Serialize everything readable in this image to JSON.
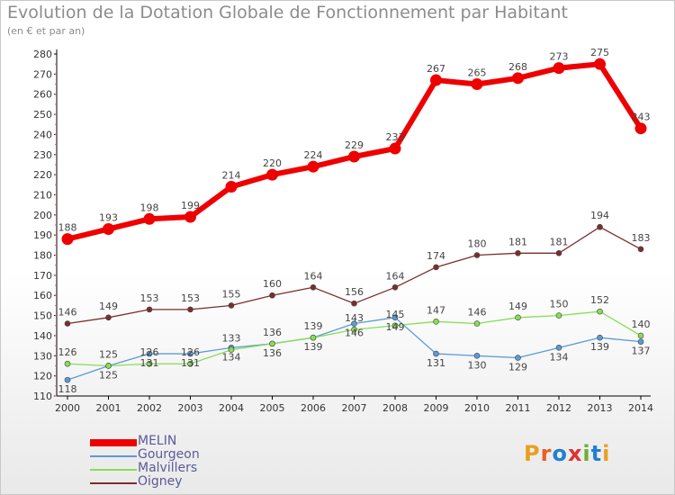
{
  "chart_data": {
    "type": "line",
    "title": "Evolution de la Dotation Globale de Fonctionnement par Habitant",
    "subtitle": "(en € et par an)",
    "xlabel": "",
    "ylabel": "",
    "ylim": [
      110,
      280
    ],
    "y_ticks": [
      110,
      120,
      130,
      140,
      150,
      160,
      170,
      180,
      190,
      200,
      210,
      220,
      230,
      240,
      250,
      260,
      270,
      280
    ],
    "categories": [
      "2000",
      "2001",
      "2002",
      "2003",
      "2004",
      "2005",
      "2006",
      "2007",
      "2008",
      "2009",
      "2010",
      "2011",
      "2012",
      "2013",
      "2014"
    ],
    "grid": false,
    "legend_position": "bottom-left",
    "series": [
      {
        "name": "MELIN",
        "color": "#ee0000",
        "values": [
          188,
          193,
          198,
          199,
          214,
          220,
          224,
          229,
          233,
          267,
          265,
          268,
          273,
          275,
          243
        ],
        "labels": [
          "188",
          "193",
          "198",
          "199",
          "214",
          "220",
          "224",
          "229",
          "233",
          "267",
          "265",
          "268",
          "273",
          "275",
          "243"
        ]
      },
      {
        "name": "Gourgeon",
        "color": "#5a9bd5",
        "values": [
          118,
          125,
          131,
          131,
          134,
          136,
          139,
          146,
          149,
          131,
          130,
          129,
          134,
          139,
          137
        ],
        "labels": [
          "118",
          "125",
          "131",
          "131",
          "134",
          "136",
          "139",
          "146",
          "149",
          "131",
          "130",
          "129",
          "134",
          "139",
          "137"
        ]
      },
      {
        "name": "Malvillers",
        "color": "#88dd55",
        "values": [
          126,
          125,
          126,
          126,
          133,
          136,
          139,
          143,
          145,
          147,
          146,
          149,
          150,
          152,
          140
        ],
        "labels": [
          "126",
          "125",
          "126",
          "126",
          "133",
          "136",
          "139",
          "143",
          "145",
          "147",
          "146",
          "149",
          "150",
          "152",
          "140"
        ]
      },
      {
        "name": "Oigney",
        "color": "#7a2e2e",
        "values": [
          146,
          149,
          153,
          153,
          155,
          160,
          164,
          156,
          164,
          174,
          180,
          181,
          181,
          194,
          183
        ],
        "labels": [
          "146",
          "149",
          "153",
          "153",
          "155",
          "160",
          "164",
          "156",
          "164",
          "174",
          "180",
          "181",
          "181",
          "194",
          "183"
        ]
      }
    ]
  },
  "logo": {
    "text": "Proxiti",
    "colors": [
      "#e8a020",
      "#e86020",
      "#2080d0",
      "#e03030",
      "#6cb030",
      "#2080d0",
      "#e8a020"
    ]
  }
}
